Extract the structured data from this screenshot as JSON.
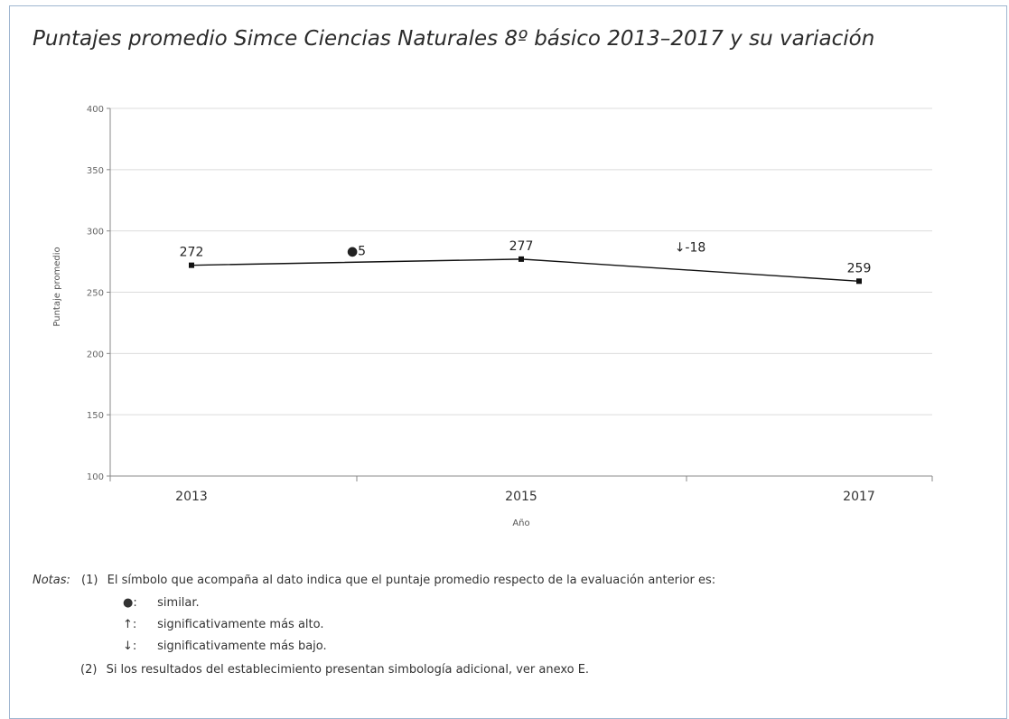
{
  "chart_data": {
    "type": "line",
    "title": "Puntajes promedio Simce Ciencias Naturales 8º básico 2013–2017 y su variación",
    "xlabel": "Año",
    "ylabel": "Puntaje promedio",
    "ylim": [
      100,
      400
    ],
    "yticks": [
      100,
      150,
      200,
      250,
      300,
      350,
      400
    ],
    "grid": true,
    "x": [
      "2013",
      "2015",
      "2017"
    ],
    "series": [
      {
        "values": [
          272,
          277,
          259
        ],
        "labels": [
          "272",
          "277",
          "259"
        ]
      }
    ],
    "variations": [
      {
        "between": [
          "2013",
          "2015"
        ],
        "symbol": "●",
        "value": "5",
        "y": 283
      },
      {
        "between": [
          "2015",
          "2017"
        ],
        "symbol": "↓",
        "value": "-18",
        "y": 286
      }
    ]
  },
  "notes": {
    "heading": "Notas:",
    "note1_num": "(1)",
    "note1_text": "El símbolo que acompaña al dato indica que el puntaje promedio respecto de la evaluación anterior es:",
    "legend": [
      {
        "symbol": "●:",
        "text": "similar."
      },
      {
        "symbol": "↑:",
        "text": "significativamente más alto."
      },
      {
        "symbol": "↓:",
        "text": "significativamente más bajo."
      }
    ],
    "note2_num": "(2)",
    "note2_text": "Si los resultados del establecimiento presentan simbología adicional, ver anexo E."
  }
}
